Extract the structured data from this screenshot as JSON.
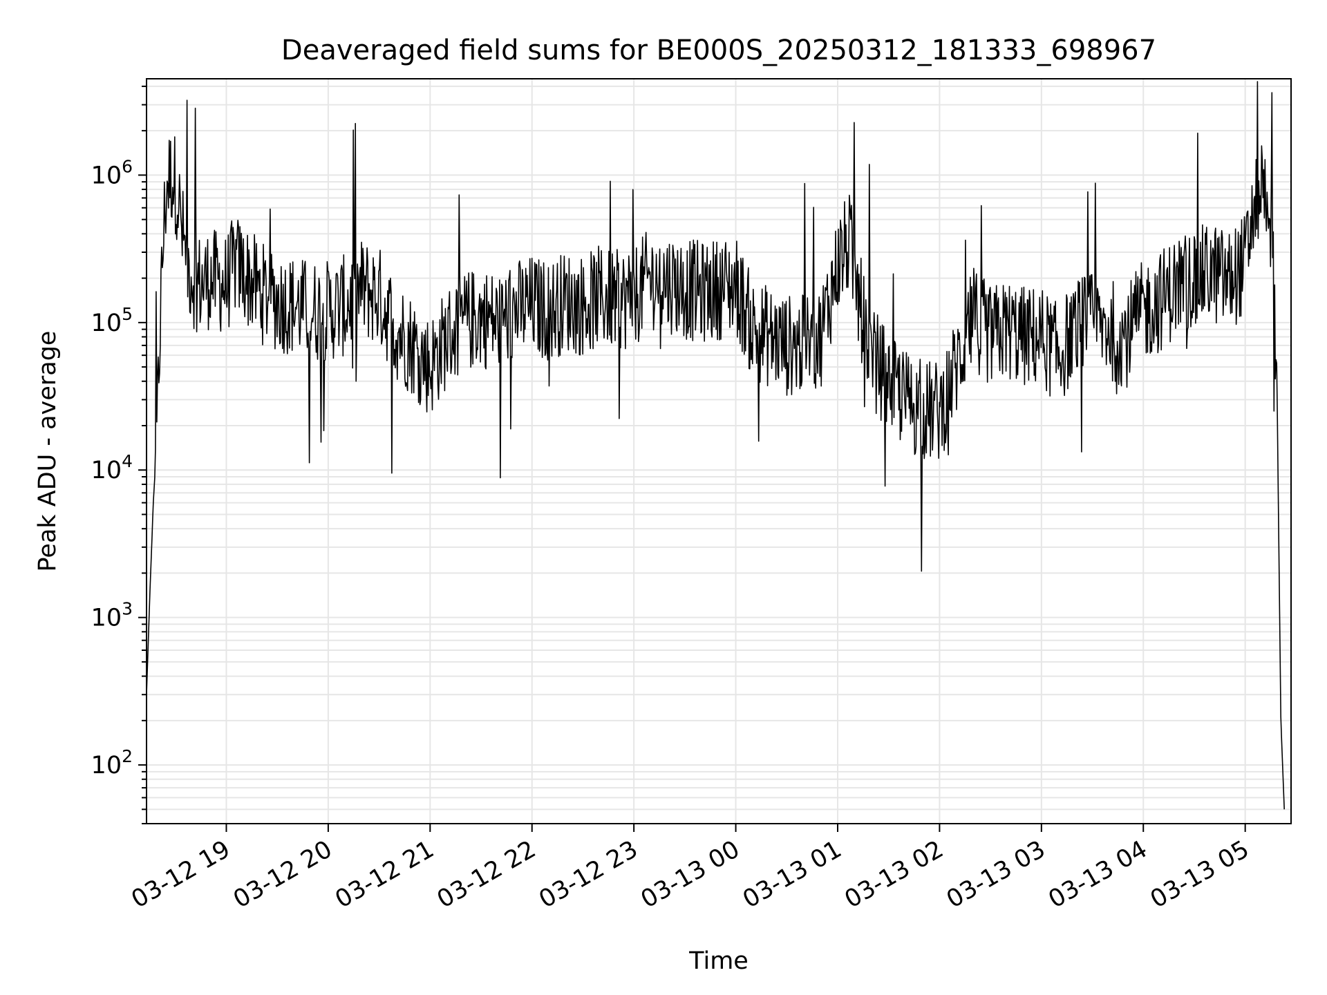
{
  "chart_data": {
    "type": "line",
    "title": "Deaveraged field sums for BE000S_20250312_181333_698967",
    "xlabel": "Time",
    "ylabel": "Peak ADU - average",
    "yscale": "log",
    "ylim": [
      40,
      4500000
    ],
    "xlim": [
      "2025-03-12 18:13",
      "2025-03-13 05:27"
    ],
    "grid": true,
    "line_color": "#000000",
    "x_ticks": [
      {
        "label": "03-12 19",
        "value": "2025-03-12 19:00"
      },
      {
        "label": "03-12 20",
        "value": "2025-03-12 20:00"
      },
      {
        "label": "03-12 21",
        "value": "2025-03-12 21:00"
      },
      {
        "label": "03-12 22",
        "value": "2025-03-12 22:00"
      },
      {
        "label": "03-12 23",
        "value": "2025-03-12 23:00"
      },
      {
        "label": "03-13 00",
        "value": "2025-03-13 00:00"
      },
      {
        "label": "03-13 01",
        "value": "2025-03-13 01:00"
      },
      {
        "label": "03-13 02",
        "value": "2025-03-13 02:00"
      },
      {
        "label": "03-13 03",
        "value": "2025-03-13 03:00"
      },
      {
        "label": "03-13 04",
        "value": "2025-03-13 04:00"
      },
      {
        "label": "03-13 05",
        "value": "2025-03-13 05:00"
      }
    ],
    "y_ticks": [
      {
        "base": "10",
        "exp": "2",
        "value": 100
      },
      {
        "base": "10",
        "exp": "3",
        "value": 1000
      },
      {
        "base": "10",
        "exp": "4",
        "value": 10000
      },
      {
        "base": "10",
        "exp": "5",
        "value": 100000
      },
      {
        "base": "10",
        "exp": "6",
        "value": 1000000
      }
    ],
    "series": [
      {
        "x": [
          "2025-03-12 18:13",
          "2025-03-12 18:15",
          "2025-03-12 18:17",
          "2025-03-12 18:19",
          "2025-03-12 18:21",
          "2025-03-12 18:23",
          "2025-03-12 18:25",
          "2025-03-12 18:28",
          "2025-03-12 18:31",
          "2025-03-12 18:34",
          "2025-03-12 18:37",
          "2025-03-12 18:41",
          "2025-03-12 18:45",
          "2025-03-12 18:50",
          "2025-03-12 18:55",
          "2025-03-12 19:00",
          "2025-03-12 19:05",
          "2025-03-12 19:10",
          "2025-03-12 19:20",
          "2025-03-12 19:30",
          "2025-03-12 19:40",
          "2025-03-12 19:50",
          "2025-03-12 20:00",
          "2025-03-12 20:10",
          "2025-03-12 20:20",
          "2025-03-12 20:30",
          "2025-03-12 20:40",
          "2025-03-12 20:50",
          "2025-03-12 21:00",
          "2025-03-12 21:10",
          "2025-03-12 21:20",
          "2025-03-12 21:30",
          "2025-03-12 21:40",
          "2025-03-12 21:50",
          "2025-03-12 22:00",
          "2025-03-12 22:10",
          "2025-03-12 22:20",
          "2025-03-12 22:30",
          "2025-03-12 22:40",
          "2025-03-12 22:50",
          "2025-03-12 23:00",
          "2025-03-12 23:10",
          "2025-03-12 23:20",
          "2025-03-12 23:30",
          "2025-03-12 23:40",
          "2025-03-12 23:50",
          "2025-03-13 00:00",
          "2025-03-13 00:10",
          "2025-03-13 00:20",
          "2025-03-13 00:30",
          "2025-03-13 00:40",
          "2025-03-13 00:50",
          "2025-03-13 01:00",
          "2025-03-13 01:07",
          "2025-03-13 01:12",
          "2025-03-13 01:20",
          "2025-03-13 01:30",
          "2025-03-13 01:40",
          "2025-03-13 01:50",
          "2025-03-13 02:00",
          "2025-03-13 02:10",
          "2025-03-13 02:20",
          "2025-03-13 02:30",
          "2025-03-13 02:40",
          "2025-03-13 02:50",
          "2025-03-13 03:00",
          "2025-03-13 03:10",
          "2025-03-13 03:20",
          "2025-03-13 03:30",
          "2025-03-13 03:40",
          "2025-03-13 03:50",
          "2025-03-13 04:00",
          "2025-03-13 04:10",
          "2025-03-13 04:20",
          "2025-03-13 04:30",
          "2025-03-13 04:40",
          "2025-03-13 04:50",
          "2025-03-13 05:00",
          "2025-03-13 05:05",
          "2025-03-13 05:10",
          "2025-03-13 05:14",
          "2025-03-13 05:17",
          "2025-03-13 05:19",
          "2025-03-13 05:20",
          "2025-03-13 05:21",
          "2025-03-13 05:22",
          "2025-03-13 05:23"
        ],
        "y": [
          300,
          1500,
          6000,
          15000,
          100000,
          400000,
          900000,
          1000000,
          800000,
          400000,
          250000,
          200000,
          180000,
          200000,
          190000,
          180000,
          250000,
          220000,
          160000,
          140000,
          130000,
          120000,
          120000,
          130000,
          170000,
          150000,
          90000,
          70000,
          50000,
          80000,
          100000,
          110000,
          100000,
          120000,
          130000,
          120000,
          140000,
          130000,
          150000,
          140000,
          150000,
          200000,
          190000,
          170000,
          160000,
          170000,
          180000,
          90000,
          80000,
          70000,
          70000,
          80000,
          250000,
          350000,
          150000,
          60000,
          40000,
          30000,
          25000,
          25000,
          50000,
          110000,
          80000,
          90000,
          80000,
          80000,
          60000,
          90000,
          100000,
          90000,
          80000,
          120000,
          140000,
          180000,
          200000,
          220000,
          190000,
          250000,
          600000,
          900000,
          700000,
          200000,
          20000,
          2000,
          200,
          100,
          50
        ]
      }
    ]
  }
}
